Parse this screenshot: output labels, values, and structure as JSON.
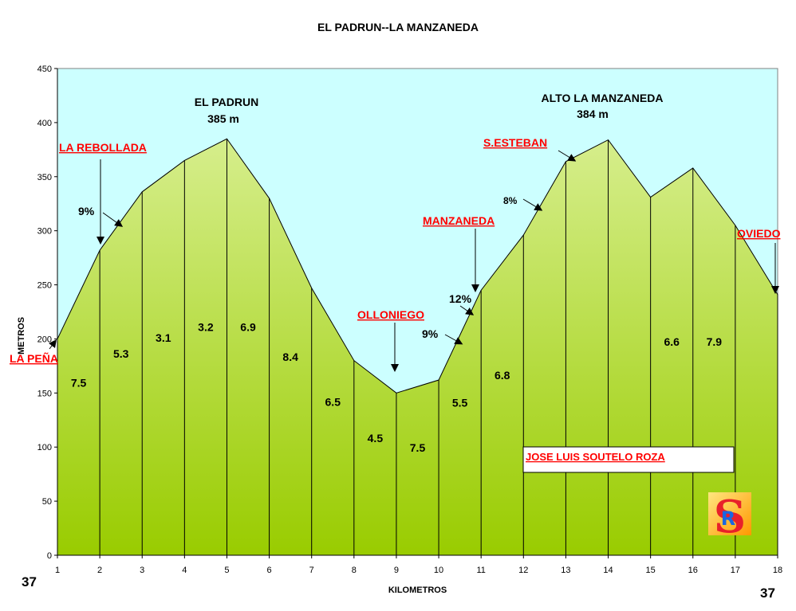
{
  "chart_data": {
    "type": "area",
    "title": "EL PADRUN--LA MANZANEDA",
    "xlabel": "KILOMETROS",
    "ylabel": "METROS",
    "x": [
      1,
      2,
      3,
      4,
      5,
      6,
      7,
      8,
      9,
      10,
      11,
      12,
      13,
      14,
      15,
      16,
      17,
      18
    ],
    "elevation": [
      200,
      282,
      336,
      365,
      385,
      330,
      247,
      180,
      150,
      162,
      245,
      296,
      364,
      384,
      331,
      358,
      305,
      241
    ],
    "ylim": [
      0,
      450
    ],
    "yticks": [
      0,
      50,
      100,
      150,
      200,
      250,
      300,
      350,
      400,
      450
    ],
    "grid": false,
    "segment_slopes": [
      {
        "segment": 1,
        "label": "7.5"
      },
      {
        "segment": 2,
        "label": "5.3"
      },
      {
        "segment": 3,
        "label": "3.1"
      },
      {
        "segment": 4,
        "label": "3.2"
      },
      {
        "segment": 5,
        "label": "6.9"
      },
      {
        "segment": 6,
        "label": "8.4"
      },
      {
        "segment": 7,
        "label": "6.5"
      },
      {
        "segment": 8,
        "label": "4.5"
      },
      {
        "segment": 9,
        "label": "7.5"
      },
      {
        "segment": 10,
        "label": "5.5"
      },
      {
        "segment": 11,
        "label": "6.8"
      },
      {
        "segment": 15,
        "label": "6.6"
      },
      {
        "segment": 16,
        "label": "7.9"
      }
    ],
    "peaks": [
      {
        "name": "EL PADRUN",
        "height": "385 m"
      },
      {
        "name": "ALTO LA MANZANEDA",
        "height": "384 m"
      }
    ],
    "places": [
      "LA PEÑA",
      "LA REBOLLADA",
      "OLLONIEGO",
      "MANZANEDA",
      "S.ESTEBAN",
      "OVIEDO"
    ],
    "grades": [
      "9%",
      "9%",
      "12%",
      "8%"
    ],
    "corner_left": "37",
    "corner_right": "37",
    "author": "JOSE LUIS SOUTELO ROZA",
    "colors": {
      "sky": "#ccffff",
      "fill_top": "#ccea80",
      "fill_bottom": "#99cc00",
      "labels": "#ff0000"
    }
  }
}
